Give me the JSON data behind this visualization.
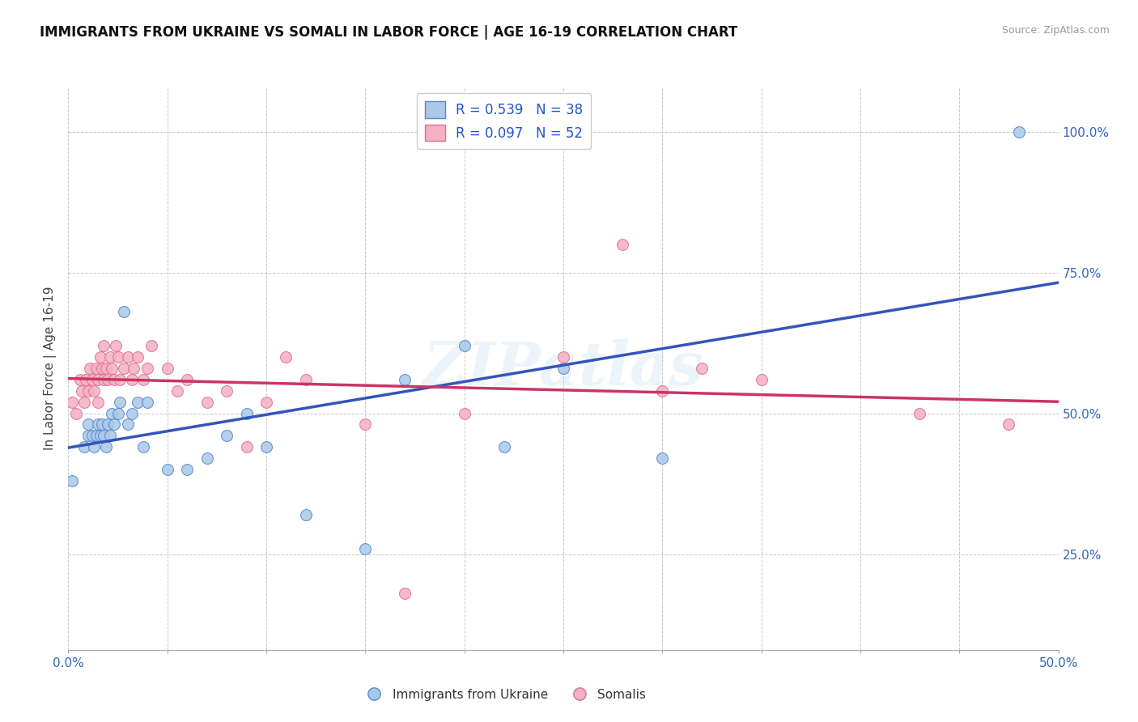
{
  "title": "IMMIGRANTS FROM UKRAINE VS SOMALI IN LABOR FORCE | AGE 16-19 CORRELATION CHART",
  "source": "Source: ZipAtlas.com",
  "ylabel": "In Labor Force | Age 16-19",
  "xlim": [
    0.0,
    0.5
  ],
  "ylim": [
    0.08,
    1.08
  ],
  "xticks": [
    0.0,
    0.05,
    0.1,
    0.15,
    0.2,
    0.25,
    0.3,
    0.35,
    0.4,
    0.45,
    0.5
  ],
  "xticklabels": [
    "0.0%",
    "",
    "",
    "",
    "",
    "",
    "",
    "",
    "",
    "",
    "50.0%"
  ],
  "ytick_positions": [
    0.25,
    0.5,
    0.75,
    1.0
  ],
  "ytick_labels": [
    "25.0%",
    "50.0%",
    "75.0%",
    "100.0%"
  ],
  "ukraine_color": "#aac8e8",
  "ukraine_edge": "#5588cc",
  "somali_color": "#f4b0c4",
  "somali_edge": "#e07090",
  "ukraine_line_color": "#3355bb",
  "somali_line_color": "#cc3366",
  "legend_text_color": "#2255cc",
  "watermark": "ZIPatlas",
  "ukraine_x": [
    0.002,
    0.008,
    0.01,
    0.01,
    0.012,
    0.013,
    0.014,
    0.015,
    0.016,
    0.017,
    0.018,
    0.019,
    0.02,
    0.021,
    0.022,
    0.023,
    0.025,
    0.026,
    0.028,
    0.03,
    0.032,
    0.035,
    0.038,
    0.04,
    0.05,
    0.06,
    0.07,
    0.08,
    0.09,
    0.1,
    0.12,
    0.15,
    0.17,
    0.2,
    0.22,
    0.25,
    0.3,
    0.48
  ],
  "ukraine_y": [
    0.38,
    0.44,
    0.46,
    0.48,
    0.46,
    0.44,
    0.46,
    0.48,
    0.46,
    0.48,
    0.46,
    0.44,
    0.48,
    0.46,
    0.5,
    0.48,
    0.5,
    0.52,
    0.68,
    0.48,
    0.5,
    0.52,
    0.44,
    0.52,
    0.4,
    0.4,
    0.42,
    0.46,
    0.5,
    0.44,
    0.32,
    0.26,
    0.56,
    0.62,
    0.44,
    0.58,
    0.42,
    1.0
  ],
  "somali_x": [
    0.002,
    0.004,
    0.006,
    0.007,
    0.008,
    0.009,
    0.01,
    0.011,
    0.012,
    0.013,
    0.014,
    0.015,
    0.015,
    0.016,
    0.017,
    0.018,
    0.018,
    0.019,
    0.02,
    0.021,
    0.022,
    0.023,
    0.024,
    0.025,
    0.026,
    0.028,
    0.03,
    0.032,
    0.033,
    0.035,
    0.038,
    0.04,
    0.042,
    0.05,
    0.055,
    0.06,
    0.07,
    0.08,
    0.09,
    0.1,
    0.11,
    0.12,
    0.15,
    0.17,
    0.2,
    0.25,
    0.28,
    0.3,
    0.32,
    0.35,
    0.43,
    0.475
  ],
  "somali_y": [
    0.52,
    0.5,
    0.56,
    0.54,
    0.52,
    0.56,
    0.54,
    0.58,
    0.56,
    0.54,
    0.58,
    0.56,
    0.52,
    0.6,
    0.58,
    0.56,
    0.62,
    0.58,
    0.56,
    0.6,
    0.58,
    0.56,
    0.62,
    0.6,
    0.56,
    0.58,
    0.6,
    0.56,
    0.58,
    0.6,
    0.56,
    0.58,
    0.62,
    0.58,
    0.54,
    0.56,
    0.52,
    0.54,
    0.44,
    0.52,
    0.6,
    0.56,
    0.48,
    0.18,
    0.5,
    0.6,
    0.8,
    0.54,
    0.58,
    0.56,
    0.5,
    0.48
  ],
  "legend_r_ukraine": "0.539",
  "legend_n_ukraine": "38",
  "legend_r_somali": "0.097",
  "legend_n_somali": "52"
}
